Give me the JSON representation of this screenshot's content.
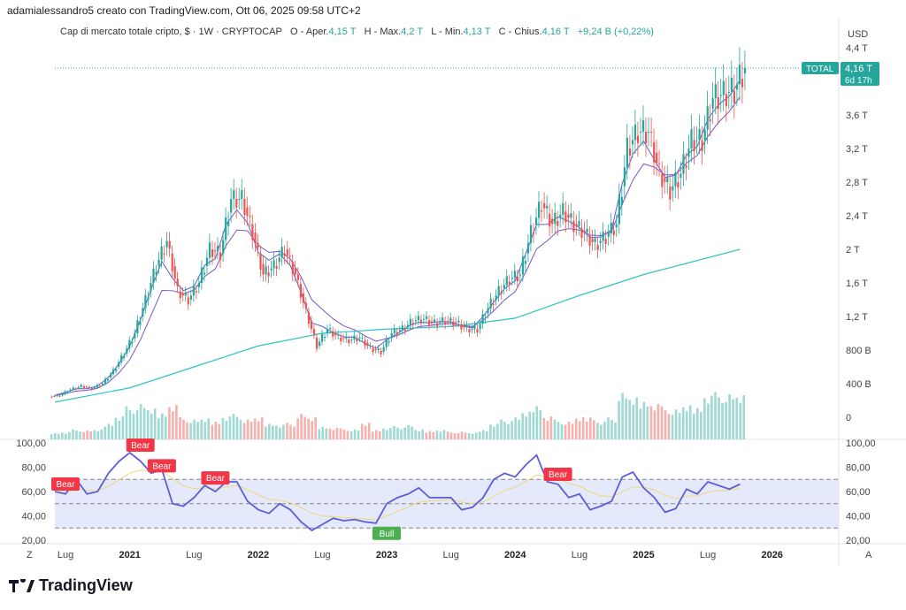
{
  "header": {
    "credit": "adamialessandro5 creato con TradingView.com, Ott 06, 2025 09:58 UTC+2"
  },
  "legend": {
    "symbol": "Cap di mercato totale cripto, $ · 1W · CRYPTOCAP",
    "o_label": "O - Aper.",
    "o": "4,15 T",
    "h_label": "H - Max.",
    "h": "4,2 T",
    "l_label": "L - Min.",
    "l": "4,13 T",
    "c_label": "C - Chius.",
    "c": "4,16 T",
    "change": "+9,24 B (+0,22%)"
  },
  "price_axis": {
    "currency": "USD",
    "ticks": [
      "4,4 T",
      "3,6 T",
      "3,2 T",
      "2,8 T",
      "2,4 T",
      "2 T",
      "1,6 T",
      "1,2 T",
      "800 B",
      "400 B",
      "0"
    ],
    "tag_name": "TOTAL",
    "tag_value": "4,16 T",
    "tag_countdown": "6d 17h"
  },
  "rsi_axis": {
    "ticks": [
      "100,00",
      "80,00",
      "60,00",
      "40,00",
      "20,00"
    ]
  },
  "time_axis": {
    "ticks": [
      "Lug",
      "2021",
      "Lug",
      "2022",
      "Lug",
      "2023",
      "Lug",
      "2024",
      "Lug",
      "2025",
      "Lug",
      "2026"
    ],
    "left_btn": "Z",
    "right_btn": "A"
  },
  "logo": {
    "text": "TradingView"
  },
  "colors": {
    "up": "#26a69a",
    "down": "#ef5350",
    "ma_fast": "#5b5fd6",
    "ma_slow": "#7a55c9",
    "ma_long": "#2ec4c4",
    "rsi": "#5b5fd6",
    "rsi_band": "#dde3fb",
    "bear": "#f23645",
    "bull": "#4caf50"
  },
  "chart_data": {
    "type": "candlestick",
    "period_start": "2020-06",
    "period_end": "2025-10",
    "interval": "monthly approximation of weekly candles",
    "ylim": [
      0,
      4.4
    ],
    "yunit": "T USD",
    "months": [
      "2020-06",
      "2020-07",
      "2020-08",
      "2020-09",
      "2020-10",
      "2020-11",
      "2020-12",
      "2021-01",
      "2021-02",
      "2021-03",
      "2021-04",
      "2021-05",
      "2021-06",
      "2021-07",
      "2021-08",
      "2021-09",
      "2021-10",
      "2021-11",
      "2021-12",
      "2022-01",
      "2022-02",
      "2022-03",
      "2022-04",
      "2022-05",
      "2022-06",
      "2022-07",
      "2022-08",
      "2022-09",
      "2022-10",
      "2022-11",
      "2022-12",
      "2023-01",
      "2023-02",
      "2023-03",
      "2023-04",
      "2023-05",
      "2023-06",
      "2023-07",
      "2023-08",
      "2023-09",
      "2023-10",
      "2023-11",
      "2023-12",
      "2024-01",
      "2024-02",
      "2024-03",
      "2024-04",
      "2024-05",
      "2024-06",
      "2024-07",
      "2024-08",
      "2024-09",
      "2024-10",
      "2024-11",
      "2024-12",
      "2025-01",
      "2025-02",
      "2025-03",
      "2025-04",
      "2025-05",
      "2025-06",
      "2025-07",
      "2025-08",
      "2025-09",
      "2025-10"
    ],
    "close": [
      0.26,
      0.33,
      0.37,
      0.34,
      0.4,
      0.55,
      0.76,
      1.0,
      1.4,
      1.8,
      2.1,
      1.5,
      1.4,
      1.6,
      2.0,
      1.95,
      2.6,
      2.6,
      2.2,
      1.7,
      1.8,
      2.0,
      1.7,
      1.25,
      0.85,
      1.05,
      0.95,
      0.92,
      0.95,
      0.82,
      0.78,
      1.0,
      1.05,
      1.15,
      1.17,
      1.12,
      1.15,
      1.13,
      1.05,
      1.05,
      1.3,
      1.5,
      1.65,
      1.7,
      2.2,
      2.55,
      2.3,
      2.45,
      2.3,
      2.2,
      2.05,
      2.15,
      2.3,
      3.2,
      3.4,
      3.4,
      2.9,
      2.7,
      2.9,
      3.3,
      3.3,
      3.8,
      3.85,
      3.9,
      4.16
    ],
    "volume_b": [
      60,
      70,
      90,
      80,
      90,
      150,
      220,
      300,
      320,
      280,
      250,
      330,
      200,
      180,
      190,
      170,
      220,
      230,
      180,
      200,
      150,
      140,
      150,
      230,
      200,
      120,
      110,
      100,
      90,
      150,
      90,
      110,
      120,
      130,
      90,
      80,
      90,
      70,
      70,
      60,
      90,
      150,
      180,
      200,
      250,
      320,
      220,
      180,
      160,
      200,
      210,
      170,
      200,
      420,
      380,
      360,
      340,
      300,
      270,
      310,
      300,
      420,
      430,
      410,
      400
    ],
    "ma_long": {
      "months": [
        "2020-06",
        "2021-01",
        "2021-07",
        "2022-01",
        "2022-07",
        "2023-01",
        "2023-07",
        "2024-01",
        "2024-07",
        "2025-01",
        "2025-10"
      ],
      "values": [
        0.18,
        0.35,
        0.6,
        0.85,
        1.0,
        1.05,
        1.08,
        1.18,
        1.45,
        1.7,
        2.0
      ]
    },
    "rsi": {
      "ylim": [
        20,
        100
      ],
      "levels": [
        70,
        50,
        30
      ],
      "values": [
        60,
        58,
        70,
        58,
        60,
        75,
        85,
        92,
        85,
        75,
        78,
        50,
        48,
        55,
        65,
        60,
        68,
        68,
        52,
        45,
        42,
        50,
        45,
        35,
        28,
        33,
        38,
        36,
        37,
        35,
        34,
        50,
        55,
        58,
        63,
        55,
        55,
        55,
        45,
        47,
        55,
        70,
        75,
        72,
        82,
        90,
        68,
        66,
        55,
        58,
        45,
        48,
        52,
        72,
        76,
        63,
        55,
        43,
        46,
        62,
        58,
        68,
        65,
        62,
        66
      ]
    },
    "signals": [
      {
        "month": "2020-06",
        "label": "Bear"
      },
      {
        "month": "2021-01",
        "label": "Bear"
      },
      {
        "month": "2021-03",
        "label": "Bear"
      },
      {
        "month": "2021-08",
        "label": "Bear"
      },
      {
        "month": "2024-04",
        "label": "Bear"
      },
      {
        "month": "2022-12",
        "label": "Bull"
      }
    ]
  }
}
